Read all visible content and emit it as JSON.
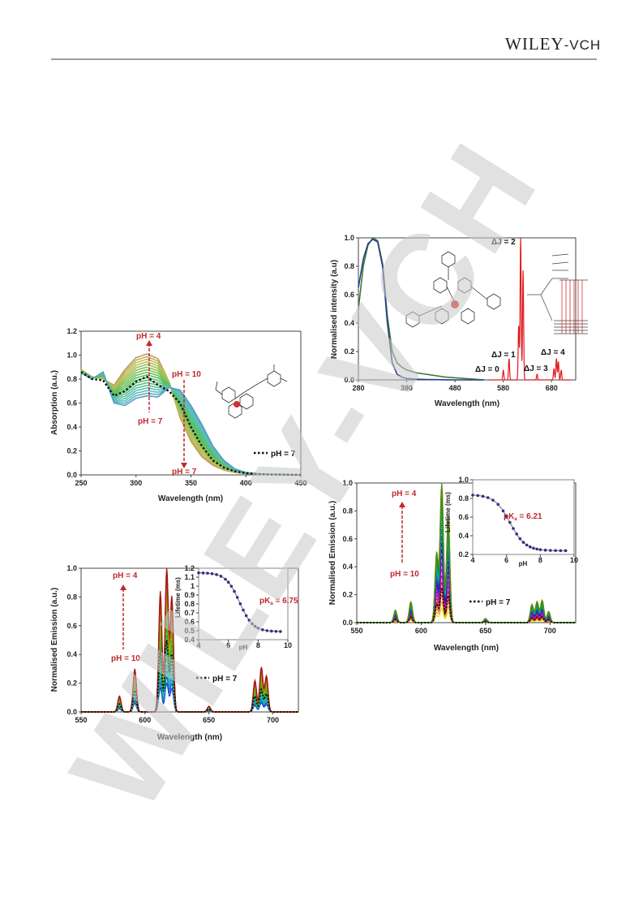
{
  "header": {
    "brand_main": "WILEY",
    "brand_suffix": "-VCH"
  },
  "watermark": {
    "text": "WILEY-VCH",
    "color": "#c8c8c8"
  },
  "colors": {
    "annotation": "#c0282e",
    "axis": "#222222"
  },
  "chart_data": [
    {
      "id": "absorption",
      "type": "line",
      "xlabel": "Wavelength (nm)",
      "ylabel": "Absorption (a.u.)",
      "xlim": [
        250,
        450
      ],
      "ylim": [
        0,
        1.2
      ],
      "xticks": [
        "250",
        "300",
        "350",
        "400",
        "450"
      ],
      "yticks": [
        "0.0",
        "0.2",
        "0.4",
        "0.6",
        "0.8",
        "1.0",
        "1.2"
      ],
      "annotations": [
        "pH = 4",
        "pH = 7",
        "pH = 10",
        "pH = 7"
      ],
      "legend": "pH = 7",
      "series_count": 17,
      "reference": {
        "x": [
          250,
          260,
          270,
          280,
          290,
          300,
          310,
          320,
          330,
          340,
          350,
          360,
          370,
          380,
          390,
          400,
          410,
          420,
          450
        ],
        "y": [
          0.86,
          0.8,
          0.79,
          0.66,
          0.7,
          0.78,
          0.82,
          0.75,
          0.7,
          0.6,
          0.4,
          0.24,
          0.12,
          0.06,
          0.03,
          0.015,
          0.008,
          0.004,
          0.0
        ]
      },
      "extreme_acid": {
        "x": [
          250,
          260,
          270,
          280,
          290,
          300,
          310,
          320,
          330,
          340,
          350,
          360,
          370,
          380,
          390,
          400,
          410,
          420,
          450
        ],
        "y": [
          0.88,
          0.82,
          0.8,
          0.75,
          0.88,
          0.98,
          1.01,
          0.97,
          0.78,
          0.48,
          0.28,
          0.15,
          0.08,
          0.04,
          0.02,
          0.01,
          0.005,
          0.002,
          0.0
        ]
      },
      "extreme_base": {
        "x": [
          250,
          260,
          270,
          280,
          290,
          300,
          310,
          320,
          330,
          340,
          350,
          360,
          370,
          380,
          390,
          400,
          410,
          420,
          450
        ],
        "y": [
          0.85,
          0.8,
          0.86,
          0.6,
          0.58,
          0.64,
          0.66,
          0.65,
          0.73,
          0.71,
          0.58,
          0.42,
          0.24,
          0.12,
          0.05,
          0.02,
          0.01,
          0.005,
          0.0
        ]
      }
    },
    {
      "id": "excitation-emission",
      "type": "line",
      "xlabel": "Wavelength (nm)",
      "ylabel": "Normalised intensity (a.u)",
      "xlim": [
        280,
        730
      ],
      "ylim": [
        0,
        1.0
      ],
      "xticks": [
        "280",
        "380",
        "480",
        "580",
        "680"
      ],
      "yticks": [
        "0.0",
        "0.2",
        "0.4",
        "0.6",
        "0.8",
        "1.0"
      ],
      "annotations": [
        "ΔJ = 2",
        "ΔJ = 1",
        "ΔJ = 0",
        "ΔJ = 3",
        "ΔJ = 4"
      ],
      "excitation_1": {
        "x": [
          280,
          290,
          300,
          310,
          320,
          330,
          340,
          350,
          360,
          370,
          380,
          400,
          420,
          440,
          460,
          480,
          500,
          520,
          540
        ],
        "y": [
          0.65,
          0.85,
          0.96,
          0.99,
          0.97,
          0.8,
          0.4,
          0.12,
          0.04,
          0.02,
          0.01,
          0.005,
          0.003,
          0.002,
          0.001,
          0.0,
          0.0,
          0.0,
          0.0
        ]
      },
      "excitation_2": {
        "x": [
          280,
          290,
          300,
          310,
          320,
          330,
          340,
          350,
          360,
          370,
          380,
          400,
          420,
          440,
          460,
          480,
          500,
          520,
          540
        ],
        "y": [
          0.5,
          0.8,
          0.95,
          1.0,
          0.98,
          0.82,
          0.45,
          0.2,
          0.12,
          0.09,
          0.07,
          0.05,
          0.04,
          0.03,
          0.02,
          0.015,
          0.01,
          0.005,
          0.0
        ]
      },
      "emission_peaks": [
        {
          "center": 580,
          "height": 0.07
        },
        {
          "center": 592,
          "height": 0.15
        },
        {
          "center": 612,
          "height": 0.38
        },
        {
          "center": 616,
          "height": 1.0
        },
        {
          "center": 621,
          "height": 0.77
        },
        {
          "center": 650,
          "height": 0.04
        },
        {
          "center": 685,
          "height": 0.08
        },
        {
          "center": 690,
          "height": 0.15
        },
        {
          "center": 694,
          "height": 0.13
        },
        {
          "center": 700,
          "height": 0.07
        }
      ]
    },
    {
      "id": "emission-left",
      "type": "line",
      "xlabel": "Wavelength (nm)",
      "ylabel": "Normalised Emission (a.u.)",
      "xlim": [
        550,
        720
      ],
      "ylim": [
        0,
        1.0
      ],
      "xticks": [
        "550",
        "600",
        "650",
        "700"
      ],
      "yticks": [
        "0.0",
        "0.2",
        "0.4",
        "0.6",
        "0.8",
        "1.0"
      ],
      "annotations": [
        "pH = 4",
        "pH = 10"
      ],
      "legend": "pH = 7",
      "series_count": 20,
      "scale_max": 1.0,
      "scale_min": 0.2,
      "reference_scale": 0.5,
      "peaks": [
        {
          "center": 580,
          "height": 0.11
        },
        {
          "center": 592,
          "height": 0.3
        },
        {
          "center": 612,
          "height": 0.84
        },
        {
          "center": 617,
          "height": 1.0
        },
        {
          "center": 621,
          "height": 0.8
        },
        {
          "center": 650,
          "height": 0.04
        },
        {
          "center": 686,
          "height": 0.22
        },
        {
          "center": 691,
          "height": 0.31
        },
        {
          "center": 695,
          "height": 0.25
        }
      ],
      "inset": {
        "xlabel": "pH",
        "ylabel": "Lifetime (ms)",
        "xlim": [
          4,
          10
        ],
        "ylim": [
          0.4,
          1.2
        ],
        "xticks": [
          "4",
          "6",
          "8",
          "10"
        ],
        "yticks": [
          "0.4",
          "0.5",
          "0.6",
          "0.7",
          "0.8",
          "0.9",
          "1",
          "1.1",
          "1.2"
        ],
        "pka_label": "pK",
        "pka_sub": "a",
        "pka_value": " = 6.75",
        "pka": 6.75,
        "upper": 1.15,
        "lower": 0.49,
        "points_x": [
          4.0,
          4.3,
          4.6,
          4.9,
          5.2,
          5.5,
          5.8,
          6.0,
          6.2,
          6.4,
          6.6,
          6.8,
          7.0,
          7.2,
          7.4,
          7.6,
          7.8,
          8.0,
          8.3,
          8.6,
          8.9,
          9.2,
          9.5
        ]
      }
    },
    {
      "id": "emission-right",
      "type": "line",
      "xlabel": "Wavelength (nm)",
      "ylabel": "Normalised Emission (a.u.)",
      "xlim": [
        550,
        720
      ],
      "ylim": [
        0,
        1.0
      ],
      "xticks": [
        "550",
        "600",
        "650",
        "700"
      ],
      "yticks": [
        "0.0",
        "0.2",
        "0.4",
        "0.6",
        "0.8",
        "1.0"
      ],
      "annotations": [
        "pH = 4",
        "pH = 10"
      ],
      "legend": "pH = 7",
      "series_count": 20,
      "scale_max": 1.0,
      "scale_min": 0.1,
      "reference_scale": 0.25,
      "peaks": [
        {
          "center": 580,
          "height": 0.09
        },
        {
          "center": 592,
          "height": 0.15
        },
        {
          "center": 612,
          "height": 0.5
        },
        {
          "center": 616,
          "height": 1.0
        },
        {
          "center": 621,
          "height": 0.77
        },
        {
          "center": 650,
          "height": 0.03
        },
        {
          "center": 686,
          "height": 0.13
        },
        {
          "center": 690,
          "height": 0.15
        },
        {
          "center": 694,
          "height": 0.16
        },
        {
          "center": 699,
          "height": 0.08
        }
      ],
      "inset": {
        "xlabel": "pH",
        "ylabel": "Lifetime (ms)",
        "xlim": [
          4,
          10
        ],
        "ylim": [
          0.2,
          1.0
        ],
        "xticks": [
          "4",
          "6",
          "8",
          "10"
        ],
        "yticks": [
          "0.2",
          "0.4",
          "0.6",
          "0.8",
          "1.0"
        ],
        "pka_label": "pK",
        "pka_sub": "a",
        "pka_value": " = 6.21",
        "pka": 6.21,
        "upper": 0.84,
        "lower": 0.24,
        "points_x": [
          4.0,
          4.3,
          4.6,
          4.9,
          5.2,
          5.5,
          5.8,
          6.0,
          6.2,
          6.4,
          6.6,
          6.8,
          7.0,
          7.2,
          7.4,
          7.6,
          7.8,
          8.0,
          8.3,
          8.6,
          8.9,
          9.2,
          9.5
        ]
      }
    }
  ]
}
